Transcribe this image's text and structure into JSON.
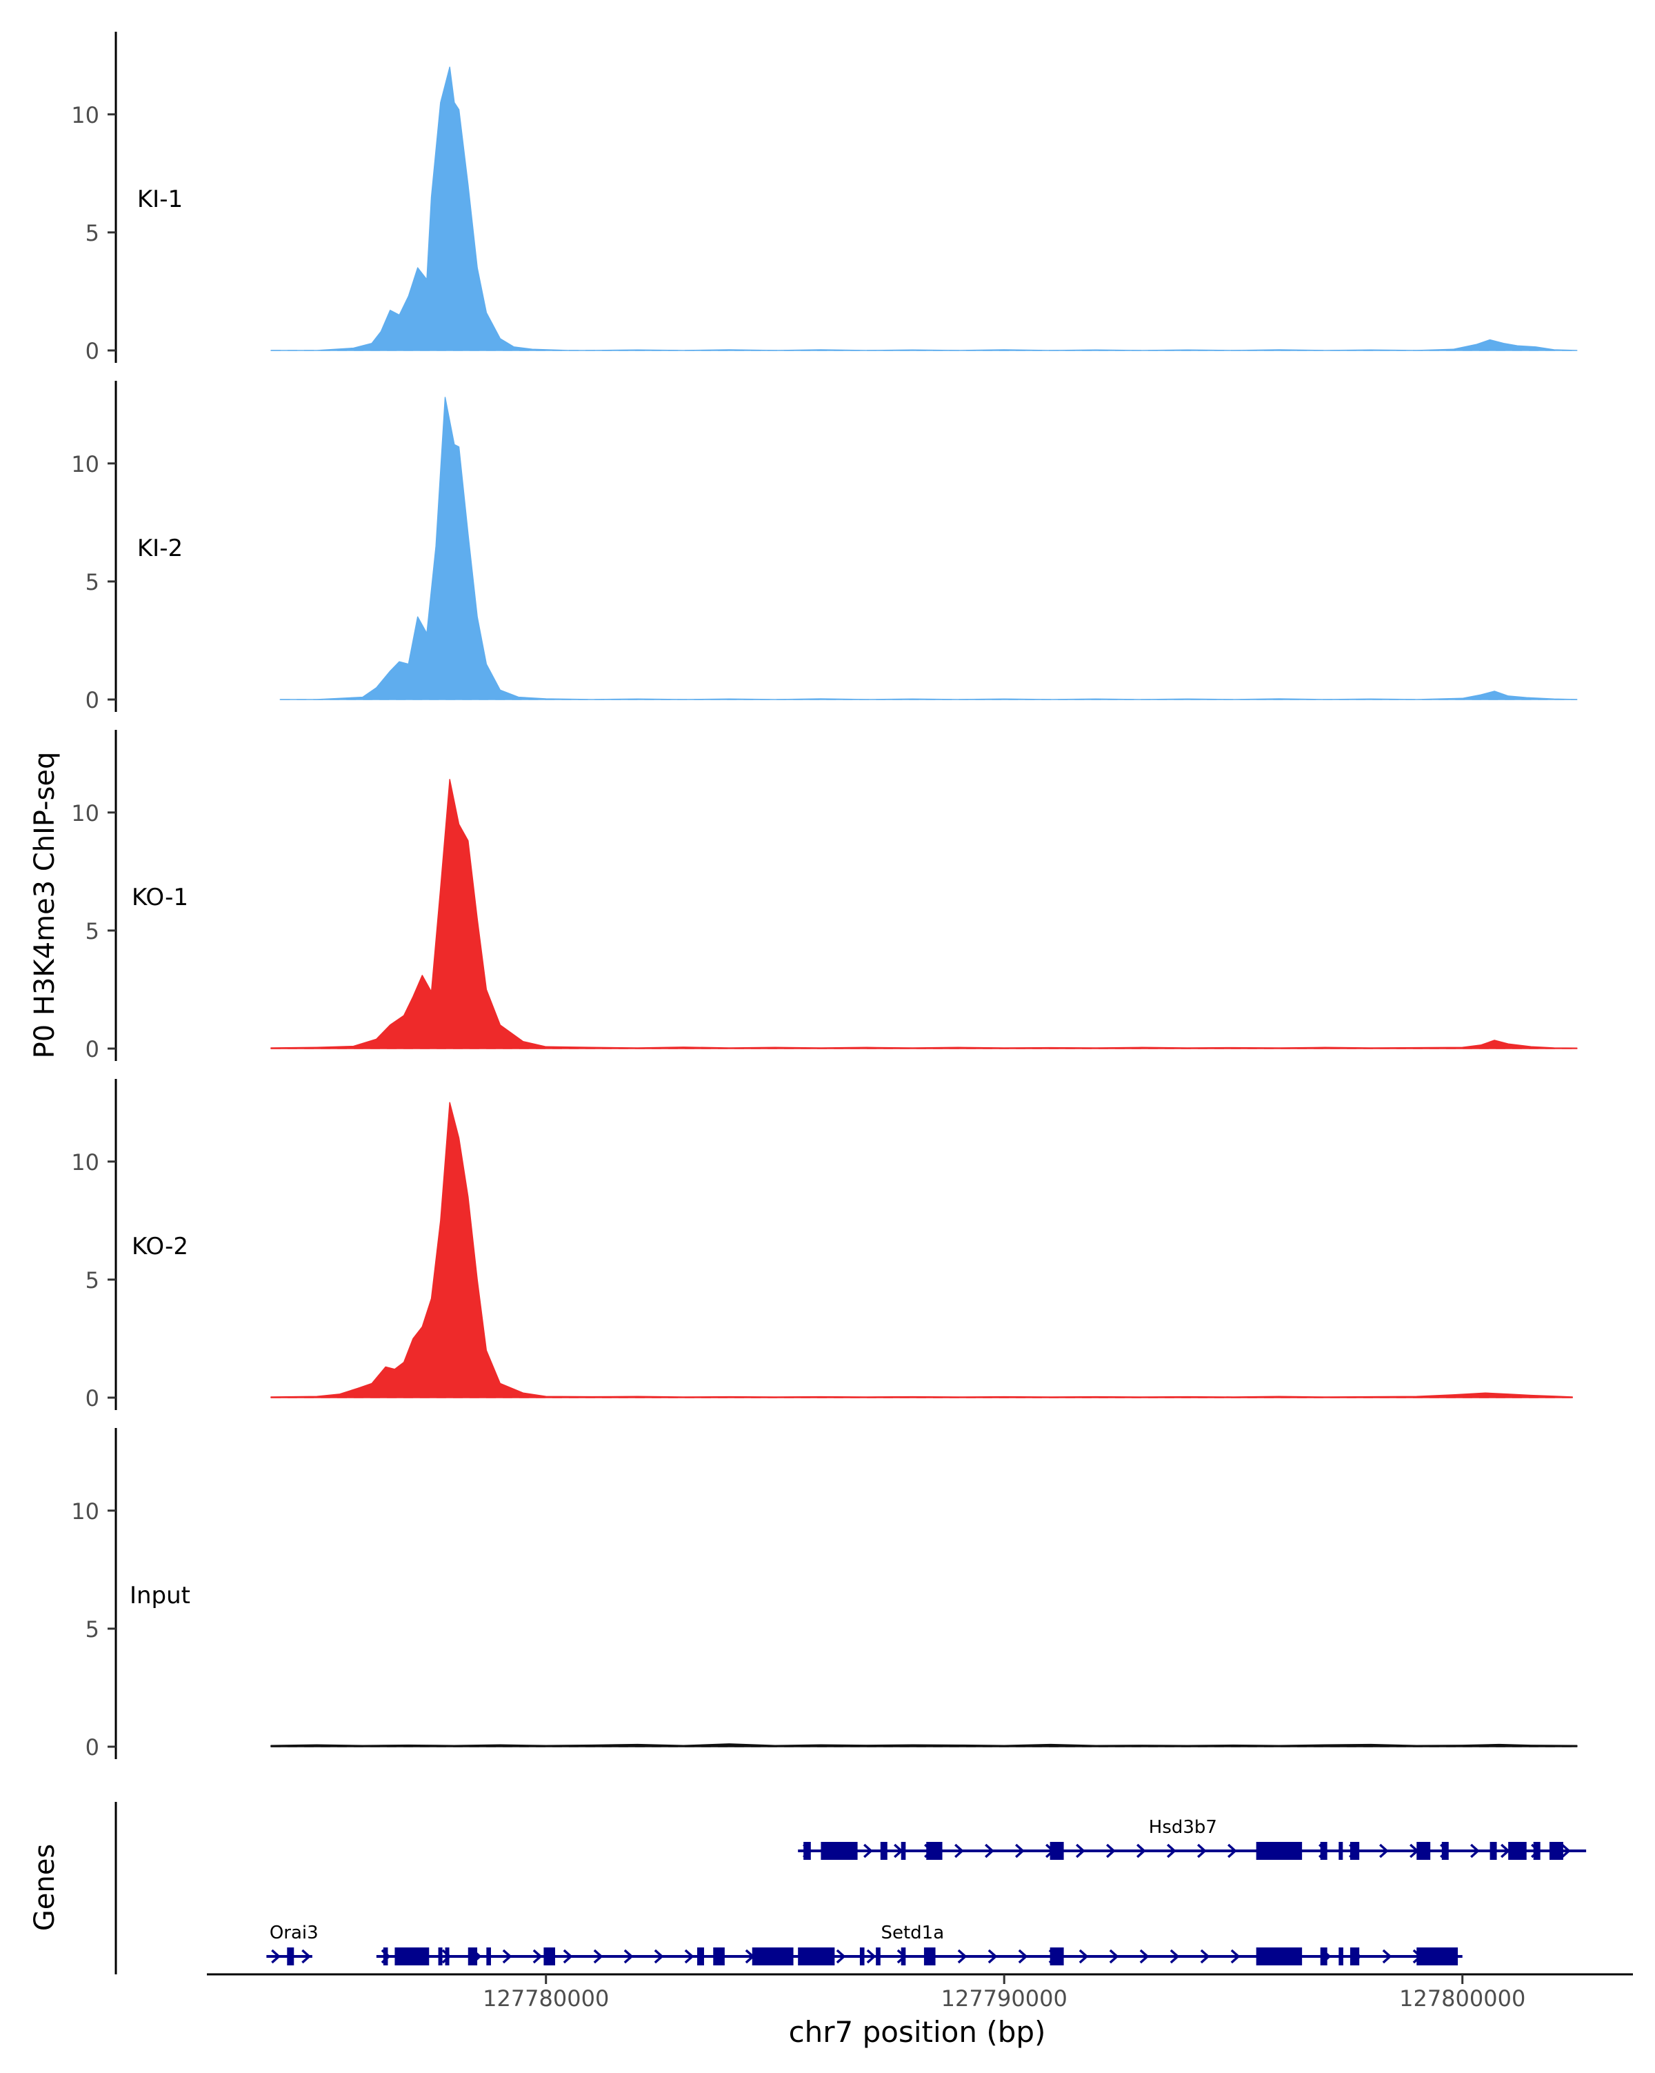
{
  "chart_data": {
    "type": "area",
    "ylabel": "P0 H3K4me3 ChIP-seq",
    "xlabel": "chr7 position (bp)",
    "x_range": [
      127772600,
      127803300
    ],
    "ylim": [
      0,
      13.5
    ],
    "y_ticks": [
      0,
      5,
      10
    ],
    "x_ticks": [
      127780000,
      127790000,
      127800000
    ],
    "x_tick_labels": [
      "127780000",
      "127790000",
      "127800000"
    ],
    "colors": {
      "KI": "#5fadee",
      "KO": "#ee2a2a",
      "Input": "#111111",
      "gene": "#00008b"
    },
    "tracks": [
      {
        "name": "KI-1",
        "color": "#5fadee",
        "x": [
          127774000,
          127775000,
          127775800,
          127776200,
          127776400,
          127776600,
          127776800,
          127777000,
          127777200,
          127777400,
          127777500,
          127777700,
          127777900,
          127778000,
          127778100,
          127778300,
          127778500,
          127778700,
          127779000,
          127779300,
          127779700,
          127780500,
          127781000,
          127782000,
          127783000,
          127784000,
          127785000,
          127786000,
          127787000,
          127788000,
          127789000,
          127790000,
          127791000,
          127792000,
          127793000,
          127794000,
          127795000,
          127796000,
          127797000,
          127798000,
          127799000,
          127799800,
          127800300,
          127800600,
          127800900,
          127801200,
          127801600,
          127802000,
          127802500
        ],
        "values": [
          0,
          0,
          0.1,
          0.3,
          0.8,
          1.7,
          1.5,
          2.3,
          3.5,
          3.0,
          6.5,
          10.5,
          12.0,
          10.5,
          10.2,
          7.0,
          3.5,
          1.6,
          0.5,
          0.15,
          0.05,
          0,
          0,
          0.02,
          0,
          0.03,
          0,
          0.03,
          0,
          0.02,
          0,
          0.03,
          0,
          0.02,
          0,
          0.02,
          0,
          0.03,
          0,
          0.02,
          0,
          0.05,
          0.25,
          0.45,
          0.3,
          0.2,
          0.15,
          0.03,
          0
        ]
      },
      {
        "name": "KI-2",
        "color": "#5fadee",
        "x": [
          127774200,
          127775000,
          127776000,
          127776300,
          127776600,
          127776800,
          127777000,
          127777200,
          127777400,
          127777600,
          127777800,
          127778000,
          127778100,
          127778300,
          127778500,
          127778700,
          127779000,
          127779400,
          127780000,
          127781000,
          127782000,
          127783000,
          127784000,
          127785000,
          127786000,
          127787000,
          127788000,
          127789000,
          127790000,
          127791000,
          127792000,
          127793000,
          127794000,
          127795000,
          127796000,
          127797000,
          127798000,
          127799000,
          127800000,
          127800400,
          127800700,
          127801000,
          127801400,
          127802000,
          127802500
        ],
        "values": [
          0,
          0,
          0.1,
          0.5,
          1.2,
          1.6,
          1.5,
          3.5,
          2.8,
          6.5,
          12.8,
          10.8,
          10.7,
          7.0,
          3.5,
          1.5,
          0.4,
          0.1,
          0.03,
          0,
          0.02,
          0,
          0.02,
          0,
          0.03,
          0,
          0.02,
          0,
          0.02,
          0,
          0.02,
          0,
          0.02,
          0,
          0.03,
          0,
          0.02,
          0,
          0.05,
          0.2,
          0.35,
          0.15,
          0.08,
          0.02,
          0
        ]
      },
      {
        "name": "KO-1",
        "color": "#ee2a2a",
        "x": [
          127774000,
          127775000,
          127775800,
          127776300,
          127776600,
          127776900,
          127777100,
          127777300,
          127777500,
          127777700,
          127777900,
          127778100,
          127778300,
          127778500,
          127778700,
          127779000,
          127779500,
          127780000,
          127781000,
          127782000,
          127783000,
          127784000,
          127785000,
          127786000,
          127787000,
          127788000,
          127789000,
          127790000,
          127791000,
          127792000,
          127793000,
          127794000,
          127795000,
          127796000,
          127797000,
          127798000,
          127799000,
          127800000,
          127800400,
          127800700,
          127801000,
          127801500,
          127802000,
          127802500
        ],
        "values": [
          0.03,
          0.05,
          0.1,
          0.4,
          1.0,
          1.4,
          2.2,
          3.1,
          2.4,
          6.8,
          11.4,
          9.5,
          8.8,
          5.5,
          2.5,
          1.0,
          0.3,
          0.08,
          0.05,
          0.03,
          0.06,
          0.03,
          0.05,
          0.03,
          0.05,
          0.03,
          0.05,
          0.03,
          0.04,
          0.03,
          0.05,
          0.03,
          0.04,
          0.03,
          0.05,
          0.03,
          0.04,
          0.05,
          0.15,
          0.35,
          0.2,
          0.08,
          0.03,
          0.02
        ]
      },
      {
        "name": "KO-2",
        "color": "#ee2a2a",
        "x": [
          127774000,
          127775000,
          127775500,
          127775900,
          127776200,
          127776500,
          127776700,
          127776900,
          127777100,
          127777300,
          127777500,
          127777700,
          127777900,
          127778100,
          127778300,
          127778500,
          127778700,
          127779000,
          127779500,
          127780000,
          127781000,
          127782000,
          127783000,
          127784000,
          127785000,
          127786000,
          127787000,
          127788000,
          127789000,
          127790000,
          127791000,
          127792000,
          127793000,
          127794000,
          127795000,
          127796000,
          127797000,
          127798000,
          127799000,
          127799800,
          127800500,
          127801000,
          127801500,
          127802000,
          127802400
        ],
        "values": [
          0.03,
          0.05,
          0.15,
          0.4,
          0.6,
          1.3,
          1.2,
          1.5,
          2.5,
          3.0,
          4.2,
          7.5,
          12.5,
          11.0,
          8.5,
          5.0,
          2.0,
          0.6,
          0.2,
          0.05,
          0.04,
          0.05,
          0.03,
          0.04,
          0.03,
          0.04,
          0.03,
          0.04,
          0.03,
          0.04,
          0.03,
          0.04,
          0.03,
          0.04,
          0.03,
          0.05,
          0.03,
          0.04,
          0.05,
          0.12,
          0.2,
          0.15,
          0.1,
          0.06,
          0.03
        ]
      },
      {
        "name": "Input",
        "color": "#111111",
        "x": [
          127774000,
          127775000,
          127776000,
          127777000,
          127778000,
          127779000,
          127780000,
          127781000,
          127782000,
          127783000,
          127784000,
          127785000,
          127786000,
          127787000,
          127788000,
          127789000,
          127790000,
          127791000,
          127792000,
          127793000,
          127794000,
          127795000,
          127796000,
          127797000,
          127798000,
          127799000,
          127800000,
          127800800,
          127801500,
          127802500
        ],
        "values": [
          0.05,
          0.08,
          0.05,
          0.07,
          0.05,
          0.08,
          0.05,
          0.07,
          0.1,
          0.05,
          0.12,
          0.05,
          0.08,
          0.06,
          0.08,
          0.07,
          0.05,
          0.1,
          0.05,
          0.06,
          0.05,
          0.07,
          0.05,
          0.08,
          0.1,
          0.05,
          0.06,
          0.1,
          0.06,
          0.05
        ]
      }
    ],
    "genes_track": {
      "label": "Genes",
      "genes": [
        {
          "name": "Hsd3b7",
          "row": 0,
          "start": 127785500,
          "end": 127802700,
          "label_pos": 127793900,
          "exons": [
            [
              127785620,
              127785780
            ],
            [
              127786000,
              127786800
            ],
            [
              127787300,
              127787450
            ],
            [
              127787750,
              127787850
            ],
            [
              127788300,
              127788650
            ],
            [
              127791000,
              127791300
            ],
            [
              127795500,
              127796500
            ],
            [
              127796900,
              127797050
            ],
            [
              127797300,
              127797380
            ],
            [
              127797550,
              127797750
            ],
            [
              127799000,
              127799300
            ],
            [
              127799550,
              127799700
            ],
            [
              127800600,
              127800750
            ],
            [
              127801000,
              127801400
            ],
            [
              127801550,
              127801700
            ],
            [
              127801900,
              127802200
            ]
          ]
        },
        {
          "name": "Orai3",
          "row": 1,
          "start": 127773900,
          "end": 127774900,
          "label_pos": 127774500,
          "exons": [
            [
              127774350,
              127774500
            ]
          ]
        },
        {
          "name": "Setd1a",
          "row": 1,
          "start": 127776300,
          "end": 127800000,
          "label_pos": 127788000,
          "exons": [
            [
              127776450,
              127776550
            ],
            [
              127776700,
              127777450
            ],
            [
              127777650,
              127777700
            ],
            [
              127777800,
              127777850
            ],
            [
              127778300,
              127778500
            ],
            [
              127778700,
              127778800
            ],
            [
              127779950,
              127780200
            ],
            [
              127783300,
              127783450
            ],
            [
              127783650,
              127783900
            ],
            [
              127784500,
              127785400
            ],
            [
              127785500,
              127786300
            ],
            [
              127786850,
              127786950
            ],
            [
              127787200,
              127787300
            ],
            [
              127787750,
              127787850
            ],
            [
              127788250,
              127788500
            ],
            [
              127791000,
              127791300
            ],
            [
              127795500,
              127796500
            ],
            [
              127796900,
              127797050
            ],
            [
              127797300,
              127797400
            ],
            [
              127797550,
              127797750
            ],
            [
              127799000,
              127799900
            ]
          ]
        }
      ]
    }
  }
}
